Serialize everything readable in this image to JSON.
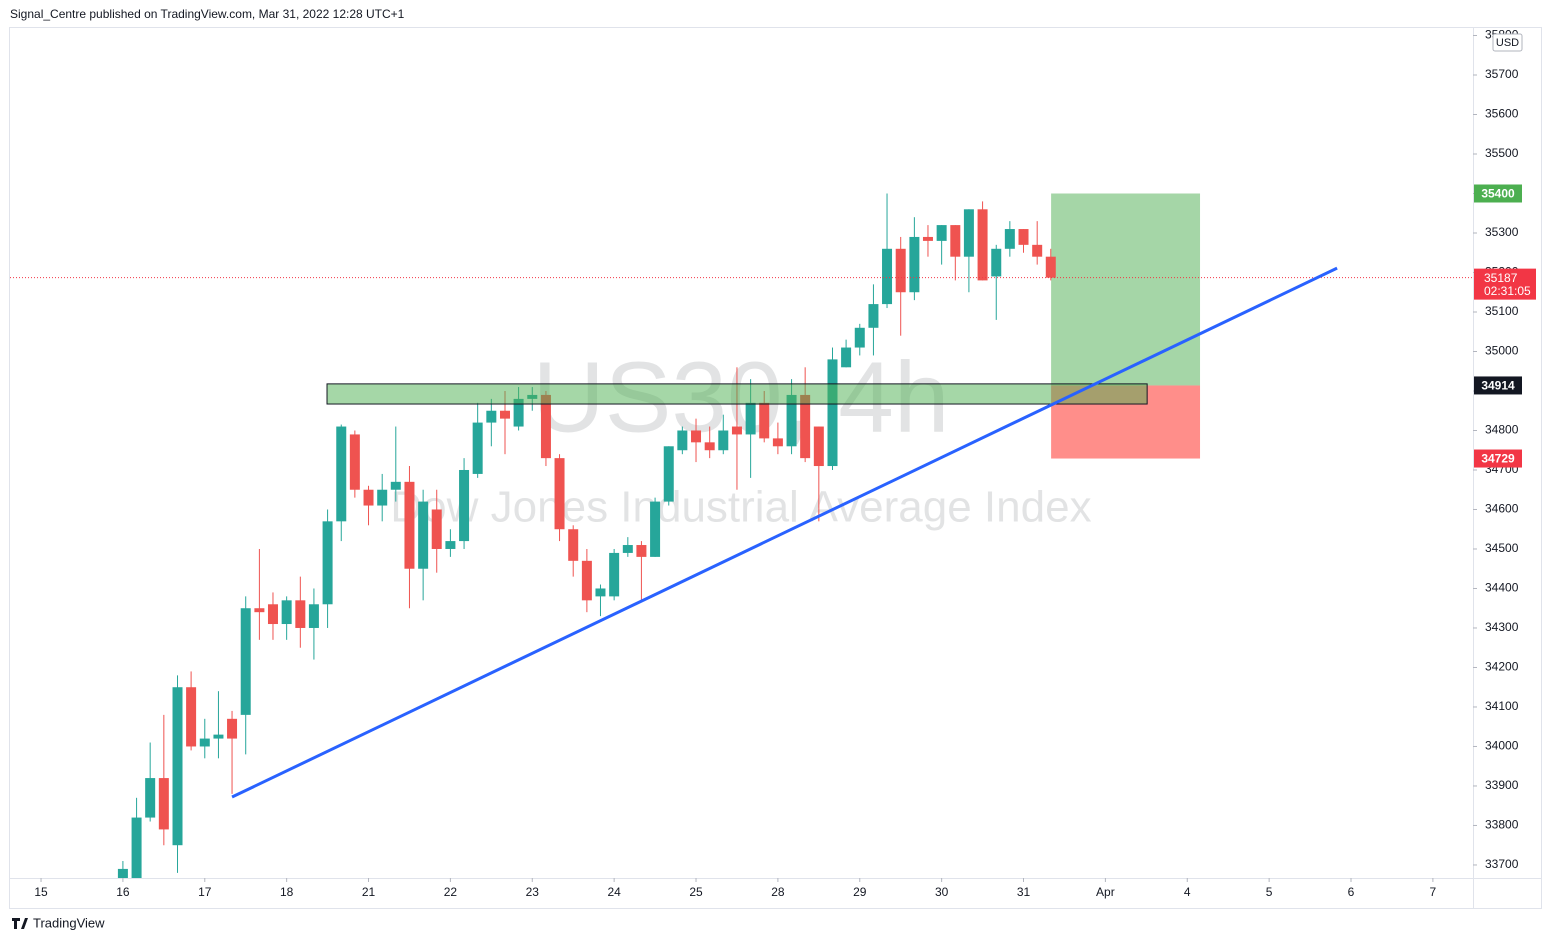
{
  "header": "Signal_Centre published on TradingView.com, Mar 31, 2022 12:28 UTC+1",
  "footer": "TradingView",
  "chart_data": {
    "type": "candlestick",
    "title": "US30, 4h",
    "subtitle": "Dow Jones Industrial Average Index",
    "currency": "USD",
    "x": [
      1,
      1.167,
      1.333,
      1.5,
      1.667,
      1.833,
      2,
      2.167,
      2.333,
      2.5,
      2.667,
      2.833,
      3,
      3.167,
      3.333,
      3.5,
      3.667,
      3.833,
      4,
      4.167,
      4.333,
      4.5,
      4.667,
      4.833,
      5,
      5.167,
      5.333,
      5.5,
      5.667,
      5.833,
      6,
      6.167,
      6.333,
      6.5,
      6.667,
      6.833,
      7,
      7.167,
      7.333,
      7.5,
      7.667,
      7.833,
      8,
      8.167,
      8.333,
      8.5,
      8.667,
      8.833,
      9,
      9.167,
      9.333,
      9.5,
      9.667,
      9.833,
      10,
      10.167,
      10.333,
      10.5,
      10.667,
      10.833,
      11,
      11.167,
      11.333,
      11.5,
      11.667,
      11.833,
      12,
      12.167,
      12.333
    ],
    "open": [
      33650,
      33650,
      33820,
      33920,
      33750,
      34150,
      34000,
      34020,
      34070,
      34080,
      34350,
      34360,
      34310,
      34370,
      34300,
      34360,
      34570,
      34790,
      34650,
      34610,
      34650,
      34670,
      34450,
      34600,
      34500,
      34520,
      34690,
      34820,
      34850,
      34810,
      34880,
      34890,
      34730,
      34550,
      34470,
      34380,
      34380,
      34490,
      34510,
      34480,
      34620,
      34750,
      34800,
      34770,
      34750,
      34810,
      34790,
      34870,
      34780,
      34760,
      34890,
      34810,
      34710,
      34960,
      35010,
      35060,
      35120,
      35260,
      35150,
      35290,
      35280,
      35320,
      35240,
      35360,
      35190,
      35260,
      35310,
      35270,
      35240
    ],
    "high": [
      33710,
      33870,
      34010,
      34080,
      34180,
      34190,
      34070,
      34140,
      34090,
      34380,
      34500,
      34390,
      34380,
      34430,
      34400,
      34600,
      34815,
      34800,
      34660,
      34690,
      34810,
      34710,
      34650,
      34650,
      34550,
      34730,
      34870,
      34880,
      34900,
      34910,
      34910,
      34900,
      34740,
      34560,
      34500,
      34410,
      34500,
      34530,
      34520,
      34630,
      34760,
      34810,
      34830,
      34810,
      34840,
      34960,
      34930,
      34900,
      34820,
      34930,
      34960,
      34810,
      35010,
      35030,
      35070,
      35170,
      35400,
      35290,
      35340,
      35320,
      35320,
      35320,
      35360,
      35380,
      35270,
      35330,
      35310,
      35330,
      35260
    ],
    "low": [
      33640,
      33640,
      33810,
      33750,
      33680,
      33990,
      33970,
      33970,
      33880,
      33980,
      34270,
      34270,
      34270,
      34250,
      34220,
      34300,
      34520,
      34630,
      34560,
      34570,
      34620,
      34350,
      34370,
      34440,
      34480,
      34500,
      34680,
      34760,
      34740,
      34800,
      34850,
      34710,
      34520,
      34430,
      34340,
      34330,
      34370,
      34480,
      34370,
      34480,
      34610,
      34740,
      34720,
      34730,
      34740,
      34650,
      34680,
      34770,
      34740,
      34740,
      34720,
      34570,
      34700,
      34960,
      34990,
      34990,
      35110,
      35040,
      35130,
      35240,
      35220,
      35180,
      35150,
      35180,
      35080,
      35240,
      35250,
      35220,
      35180
    ],
    "close": [
      33690,
      33820,
      33920,
      33790,
      34150,
      34000,
      34020,
      34030,
      34020,
      34350,
      34340,
      34310,
      34370,
      34300,
      34360,
      34570,
      34810,
      34650,
      34610,
      34650,
      34670,
      34450,
      34620,
      34500,
      34520,
      34700,
      34820,
      34850,
      34830,
      34880,
      34890,
      34730,
      34550,
      34470,
      34370,
      34400,
      34490,
      34510,
      34480,
      34620,
      34760,
      34800,
      34770,
      34750,
      34800,
      34790,
      34870,
      34780,
      34760,
      34890,
      34730,
      34710,
      34980,
      35010,
      35060,
      35120,
      35260,
      35150,
      35290,
      35280,
      35320,
      35240,
      35360,
      35180,
      35260,
      35310,
      35270,
      35240,
      35187
    ],
    "up_color": "#26a69a",
    "down_color": "#ef5350",
    "xlim": [
      -0.379,
      17.49
    ],
    "xticks": [
      {
        "value": 0,
        "label": "15"
      },
      {
        "value": 1,
        "label": "16"
      },
      {
        "value": 2,
        "label": "17"
      },
      {
        "value": 3,
        "label": "18"
      },
      {
        "value": 4,
        "label": "21"
      },
      {
        "value": 5,
        "label": "22"
      },
      {
        "value": 6,
        "label": "23"
      },
      {
        "value": 7,
        "label": "24"
      },
      {
        "value": 8,
        "label": "25"
      },
      {
        "value": 9,
        "label": "28"
      },
      {
        "value": 10,
        "label": "29"
      },
      {
        "value": 11,
        "label": "30"
      },
      {
        "value": 12,
        "label": "31"
      },
      {
        "value": 13,
        "label": "Apr"
      },
      {
        "value": 14,
        "label": "4"
      },
      {
        "value": 15,
        "label": "5"
      },
      {
        "value": 16,
        "label": "6"
      },
      {
        "value": 17,
        "label": "7"
      }
    ],
    "ylim": [
      33667,
      35819
    ],
    "yticks": [
      33700,
      33800,
      33900,
      34000,
      34100,
      34200,
      34300,
      34400,
      34500,
      34600,
      34700,
      34800,
      34900,
      35000,
      35100,
      35200,
      35300,
      35400,
      35500,
      35600,
      35700,
      35800
    ],
    "last_price": {
      "value": 35187,
      "countdown": "02:31:05",
      "color": "#f23645"
    },
    "zone": {
      "low": 34867,
      "high": 34918,
      "x_start": 3.493,
      "x_end": 13.51,
      "color": "rgba(76,175,80,0.5)"
    },
    "position": {
      "entry": 34914,
      "target": 35400,
      "stop": 34729,
      "x_start": 12.337,
      "x_end": 14.156,
      "profit_color": "#a5d6a7",
      "loss_color": "#ff8e8a",
      "target_tag_color": "#4caf50",
      "entry_tag_color": "#131722",
      "stop_tag_color": "#f23645"
    },
    "trendline": {
      "x": [
        2.333,
        15.83
      ],
      "y": [
        33872,
        35211
      ],
      "color": "#2962ff"
    }
  }
}
